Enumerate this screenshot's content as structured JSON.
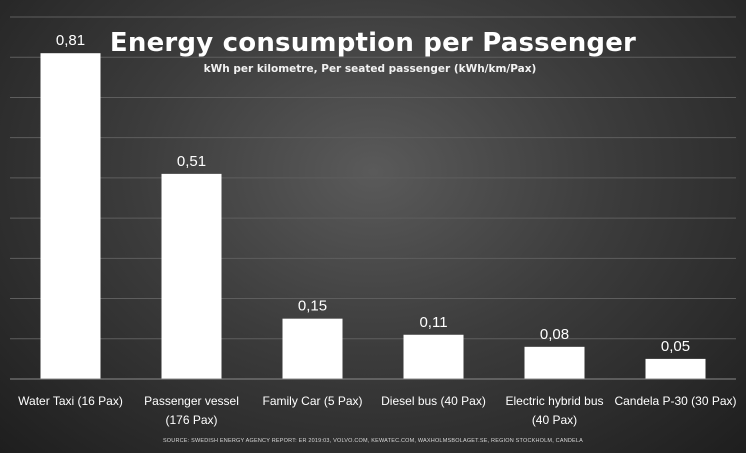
{
  "chart_data": {
    "type": "bar",
    "title": "Energy consumption per Passenger",
    "subtitle": "kWh per kilometre, Per seated passenger (kWh/km/Pax)",
    "categories": [
      [
        "Water Taxi (16 Pax)"
      ],
      [
        "Passenger vessel",
        "(176 Pax)"
      ],
      [
        "Family Car (5 Pax)"
      ],
      [
        "Diesel bus (40 Pax)"
      ],
      [
        "Electric hybrid bus",
        "(40 Pax)"
      ],
      [
        "Candela P-30 (30 Pax)"
      ]
    ],
    "values": [
      0.81,
      0.51,
      0.15,
      0.11,
      0.08,
      0.05
    ],
    "value_labels": [
      "0,81",
      "0,51",
      "0,15",
      "0,11",
      "0,08",
      "0,05"
    ],
    "ylim": [
      0,
      0.9
    ],
    "grid": true,
    "bar_color": "#ffffff",
    "source": "SOURCE: SWEDISH ENERGY AGENCY REPORT: ER 2019:03, VOLVO.COM, KEWATEC.COM, WAXHOLMSBOLAGET.SE, REGION STOCKHOLM, CANDELA"
  }
}
